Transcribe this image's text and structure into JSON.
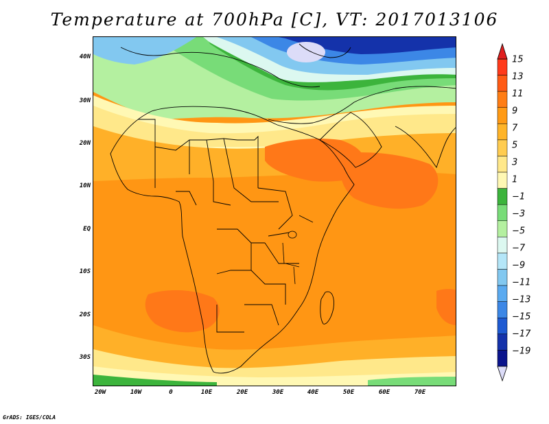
{
  "title": "Temperature at 700hPa [C], VT: 2017013106",
  "footer": "GrADS: IGES/COLA",
  "map": {
    "lat_labels": [
      "40N",
      "30N",
      "20N",
      "10N",
      "EQ",
      "10S",
      "20S",
      "30S"
    ],
    "lon_labels": [
      "20W",
      "10W",
      "0",
      "10E",
      "20E",
      "30E",
      "40E",
      "50E",
      "60E",
      "70E"
    ]
  },
  "colorbar": {
    "labels": [
      "15",
      "13",
      "11",
      "9",
      "7",
      "5",
      "3",
      "1",
      "−1",
      "−3",
      "−5",
      "−7",
      "−9",
      "−11",
      "−13",
      "−15",
      "−17",
      "−19"
    ],
    "colors": [
      "#ff3a1a",
      "#ff5a14",
      "#ff7d14",
      "#ff9a14",
      "#ffb428",
      "#ffcc50",
      "#ffe88a",
      "#fff8b4",
      "#3cb43c",
      "#78dc78",
      "#b4f0a0",
      "#dcf8f0",
      "#b4e6f8",
      "#82c8f0",
      "#5aaaf0",
      "#3c87e6",
      "#1e5ad2",
      "#1432aa",
      "#0a148c"
    ],
    "top_color": "#e01e1e",
    "bottom_color": "#dcdcf8"
  },
  "colors": {
    "orange_dark": "#ff7818",
    "orange": "#ff9614",
    "orange_light": "#ffb028",
    "yellow": "#ffcc50",
    "pale_yellow": "#ffe88a",
    "cream": "#fff8b4",
    "green": "#3cb43c",
    "light_green": "#78dc78",
    "pale_green": "#b4f0a0",
    "pale_cyan": "#dcf8f0",
    "light_blue": "#82c8f0",
    "blue": "#3c87e6",
    "dark_blue": "#1432aa",
    "lavender": "#dcdcf8"
  }
}
